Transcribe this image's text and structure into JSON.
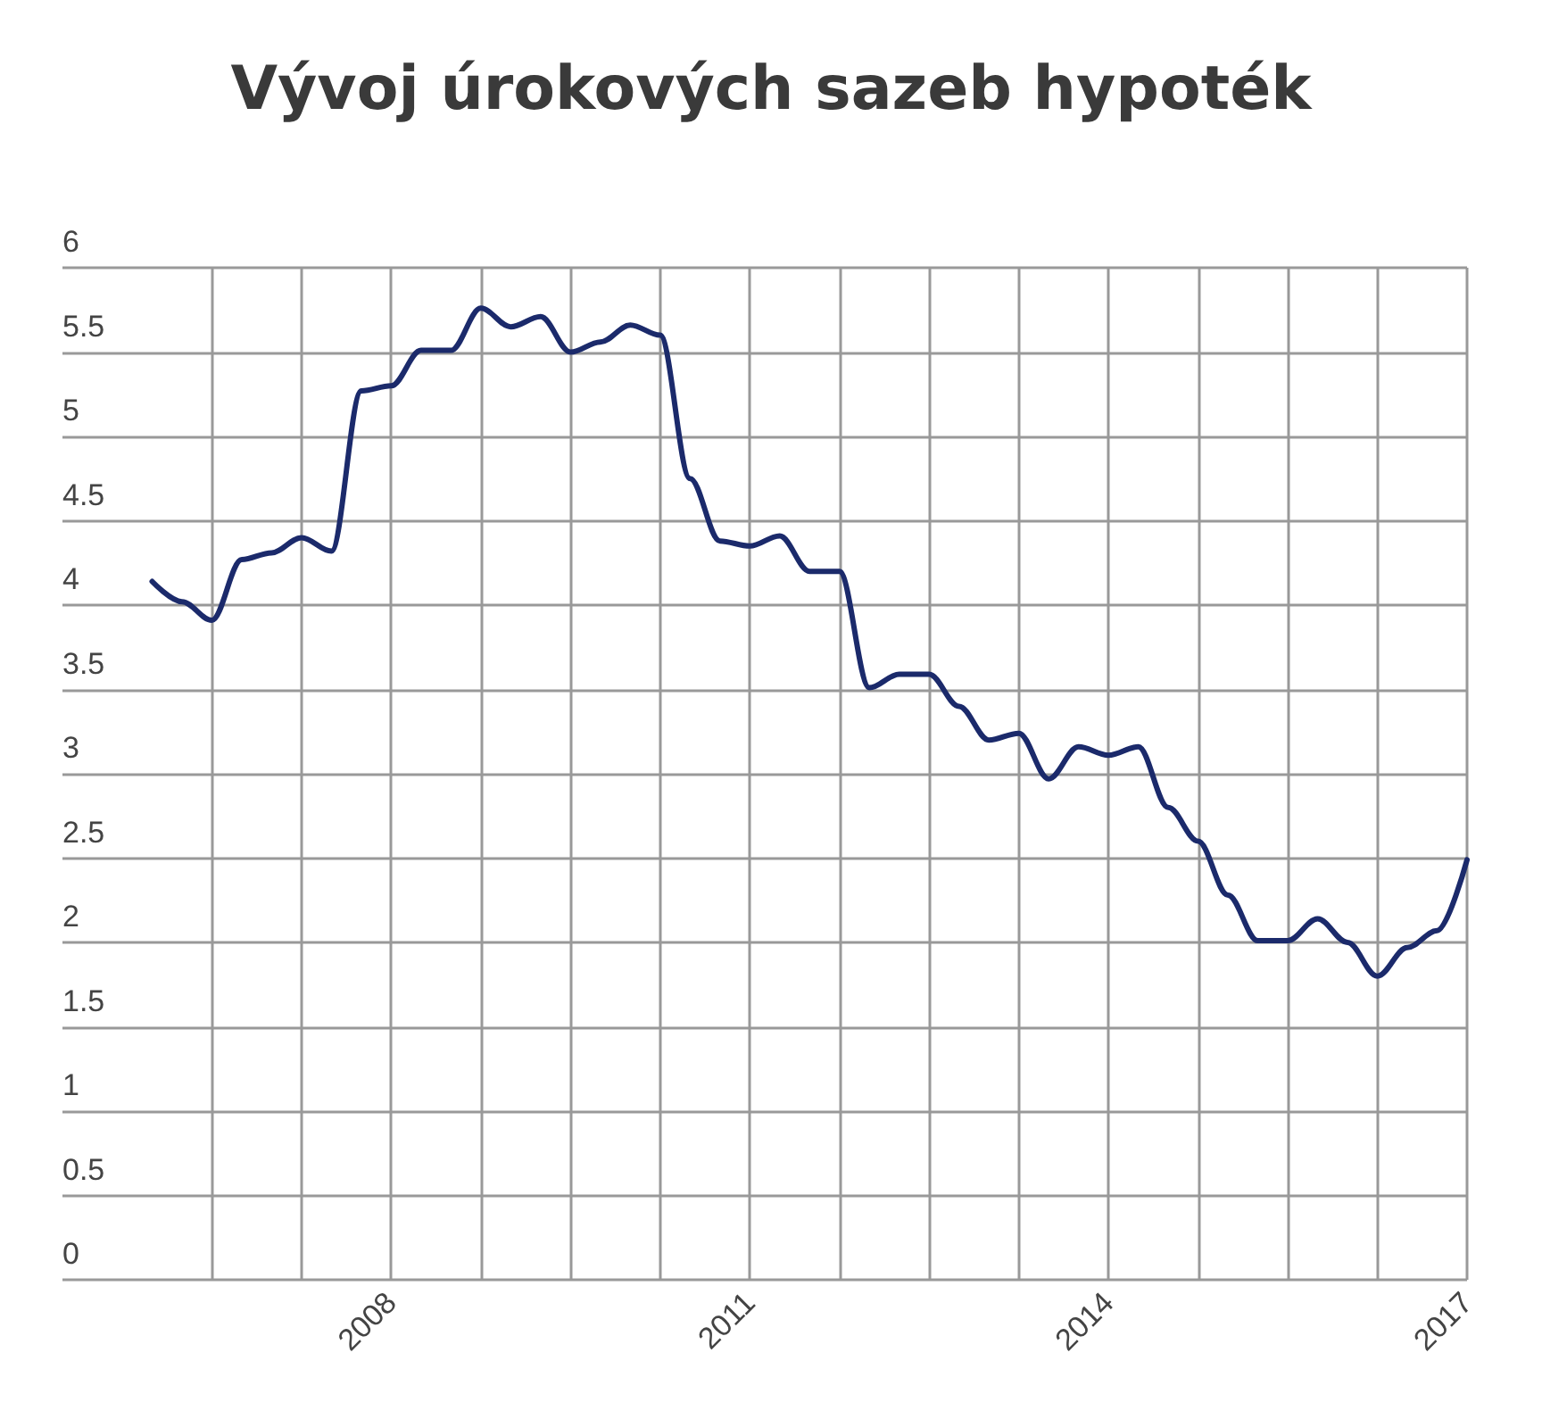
{
  "chart_data": {
    "type": "line",
    "title": "Vývoj úrokových sazeb hypoték",
    "x": [
      2006,
      2006.25,
      2006.5,
      2006.75,
      2007,
      2007.25,
      2007.5,
      2007.75,
      2008,
      2008.25,
      2008.5,
      2008.75,
      2009,
      2009.25,
      2009.5,
      2009.75,
      2010,
      2010.25,
      2010.5,
      2010.75,
      2011,
      2011.25,
      2011.5,
      2011.75,
      2012,
      2012.25,
      2012.5,
      2012.75,
      2013,
      2013.25,
      2013.5,
      2013.75,
      2014,
      2014.25,
      2014.5,
      2014.75,
      2015,
      2015.25,
      2015.5,
      2015.75,
      2016,
      2016.25,
      2016.5,
      2016.75,
      2017
    ],
    "series": [
      {
        "color": "#1b2a6b",
        "values": [
          4.14,
          4.02,
          3.91,
          4.27,
          4.31,
          4.4,
          4.32,
          5.27,
          5.3,
          5.51,
          5.51,
          5.76,
          5.65,
          5.71,
          5.5,
          5.56,
          5.66,
          5.6,
          4.75,
          4.38,
          4.35,
          4.41,
          4.2,
          4.2,
          3.51,
          3.59,
          3.59,
          3.4,
          3.2,
          3.24,
          2.97,
          3.16,
          3.11,
          3.16,
          2.8,
          2.6,
          2.28,
          2.01,
          2.01,
          2.14,
          2.0,
          1.8,
          1.97,
          2.07,
          2.49
        ]
      }
    ],
    "xlim": [
      2005.25,
      2017
    ],
    "xticks": [
      {
        "value": 2006.5,
        "label": null
      },
      {
        "value": 2007.25,
        "label": null
      },
      {
        "value": 2008,
        "label": "2008"
      },
      {
        "value": 2008.75,
        "label": null
      },
      {
        "value": 2009.5,
        "label": null
      },
      {
        "value": 2010.25,
        "label": null
      },
      {
        "value": 2011,
        "label": "2011"
      },
      {
        "value": 2011.75,
        "label": null
      },
      {
        "value": 2012.5,
        "label": null
      },
      {
        "value": 2013.25,
        "label": null
      },
      {
        "value": 2014,
        "label": "2014"
      },
      {
        "value": 2014.75,
        "label": null
      },
      {
        "value": 2015.5,
        "label": null
      },
      {
        "value": 2016.25,
        "label": null
      },
      {
        "value": 2017,
        "label": "2017"
      }
    ],
    "ylim": [
      0,
      6
    ],
    "yticks": [
      0,
      0.5,
      1,
      1.5,
      2,
      2.5,
      3,
      3.5,
      4,
      4.5,
      5,
      5.5,
      6
    ],
    "grid": true,
    "marker": "none",
    "line_style": "solid"
  }
}
